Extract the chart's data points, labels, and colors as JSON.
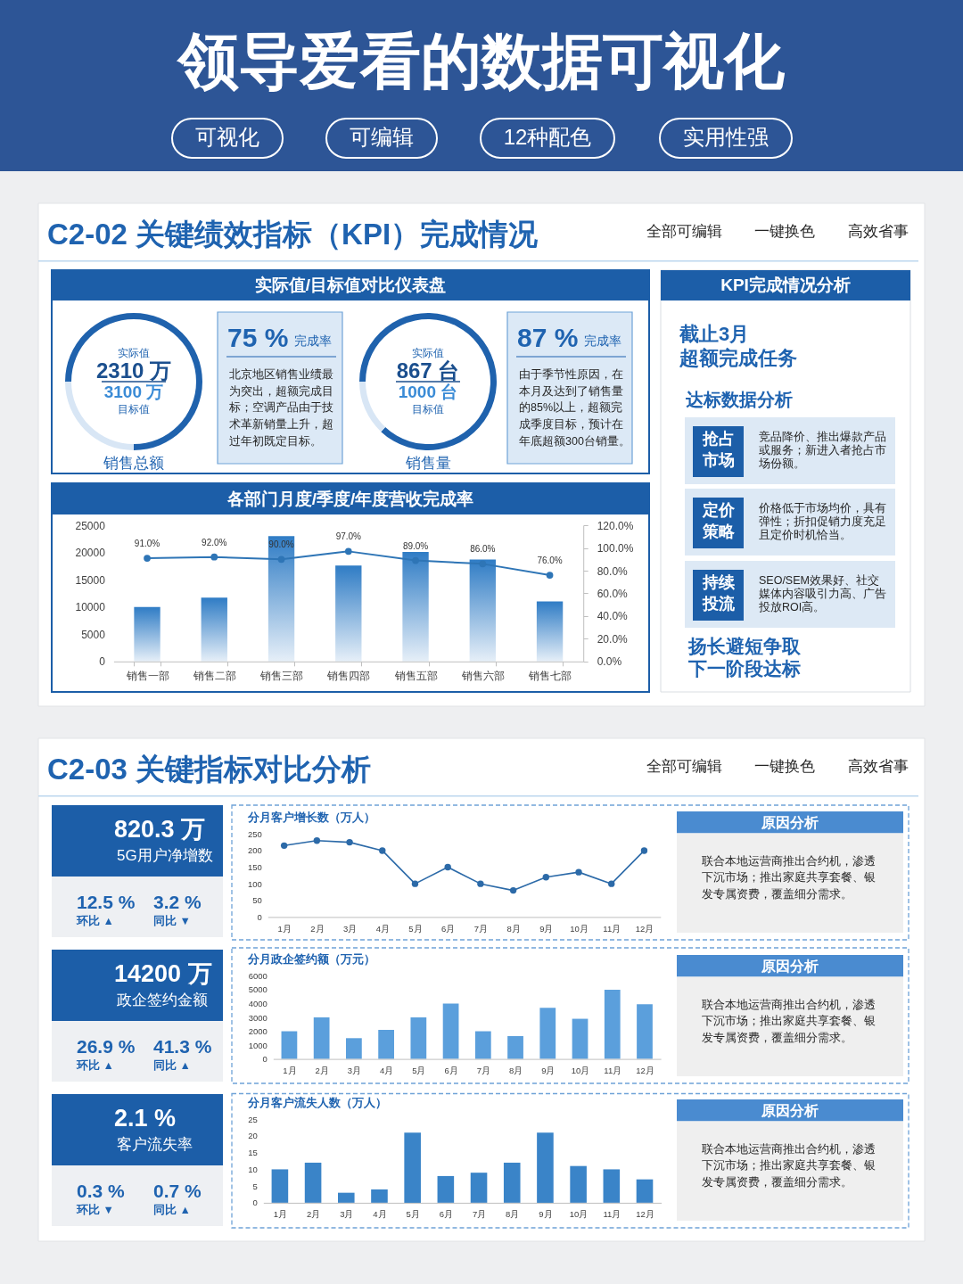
{
  "chart_data": [
    {
      "type": "other",
      "title": "领导爱看的数据可视化",
      "annotations": [
        "可视化",
        "可编辑",
        "12种配色",
        "实用性强"
      ]
    },
    {
      "type": "other",
      "title": "C2-02 关键绩效指标（KPI）完成情况",
      "annotations": [
        "全部可编辑",
        "一键换色",
        "高效省事"
      ]
    },
    {
      "type": "other",
      "title": "实际值/目标值对比仪表盘"
    },
    {
      "type": "donut",
      "title": "销售总额",
      "categories": [
        null,
        null
      ],
      "values": [
        75,
        25
      ],
      "colors": [
        "#1f62ad",
        "#d8e6f5"
      ],
      "annotations": [
        "实际值",
        "2310 万",
        "3100 万",
        "目标值",
        "75 %",
        "完成率",
        "北京地区销售业绩最为突出，超额完成目标；空调产品由于技术革新销量上升，超过年初既定目标。"
      ]
    },
    {
      "type": "donut",
      "title": "销售量",
      "categories": [
        null,
        null
      ],
      "values": [
        87,
        13
      ],
      "colors": [
        "#1f62ad",
        "#d8e6f5"
      ],
      "annotations": [
        "实际值",
        "867 台",
        "1000 台",
        "目标值",
        "87 %",
        "完成率",
        "由于季节性原因，在本月及达到了销售量的85%以上，超额完成季度目标，预计在年底超额300台销量。"
      ]
    },
    {
      "type": "bar",
      "title": "各部门月度/季度/年度营收完成率",
      "categories": [
        "销售一部",
        "销售二部",
        "销售三部",
        "销售四部",
        "销售五部",
        "销售六部",
        "销售七部"
      ],
      "series": [
        {
          "type": "bar",
          "color": "#2f7cc5",
          "values": [
            10000,
            11700,
            23000,
            17600,
            20100,
            18700,
            11000
          ]
        },
        {
          "type": "line",
          "axis": "y2",
          "color": "#2e75b6",
          "values": [
            91,
            92,
            90,
            97,
            89,
            86,
            76
          ],
          "value_labels": [
            "91.0%",
            "92.0%",
            "90.0%",
            "97.0%",
            "89.0%",
            "86.0%",
            "76.0%"
          ]
        }
      ],
      "marker": "circle",
      "ylim": [
        0,
        25000
      ],
      "yticks": [
        0,
        5000,
        10000,
        15000,
        20000,
        25000
      ],
      "y2lim": [
        0,
        120
      ],
      "y2ticks": [
        {
          "value": 0,
          "label": "0.0%"
        },
        {
          "value": 20,
          "label": "20.0%"
        },
        {
          "value": 40,
          "label": "40.0%"
        },
        {
          "value": 60,
          "label": "60.0%"
        },
        {
          "value": 80,
          "label": "80.0%"
        },
        {
          "value": 100,
          "label": "100.0%"
        },
        {
          "value": 120,
          "label": "120.0%"
        }
      ]
    },
    {
      "type": "other",
      "title": "KPI完成情况分析",
      "annotations": [
        "截止3月",
        "超额完成任务",
        "达标数据分析",
        "抢占市场",
        "竞品降价、推出爆款产品或服务；新进入者抢占市场份额。",
        "定价策略",
        "价格低于市场均价，具有弹性；折扣促销力度充足且定价时机恰当。",
        "持续投流",
        "SEO/SEM效果好、社交媒体内容吸引力高、广告投放ROI高。",
        "扬长避短争取",
        "下一阶段达标"
      ]
    },
    {
      "type": "other",
      "title": "C2-03 关键指标对比分析",
      "annotations": [
        "全部可编辑",
        "一键换色",
        "高效省事"
      ]
    },
    {
      "type": "other",
      "annotations": [
        "820.3 万",
        "5G用户净增数",
        "12.5 %",
        "环比 ▲",
        "3.2 %",
        "同比 ▼"
      ]
    },
    {
      "type": "line",
      "title": "分月客户增长数（万人）",
      "categories": [
        "1月",
        "2月",
        "3月",
        "4月",
        "5月",
        "6月",
        "7月",
        "8月",
        "9月",
        "10月",
        "11月",
        "12月"
      ],
      "values": [
        215,
        230,
        225,
        200,
        100,
        150,
        100,
        80,
        120,
        135,
        100,
        200
      ],
      "color": "#2c6aa8",
      "marker": "circle",
      "ylim": [
        0,
        250
      ],
      "yticks": [
        0,
        50,
        100,
        150,
        200,
        250
      ]
    },
    {
      "type": "other",
      "title": "原因分析",
      "annotations": [
        "联合本地运营商推出合约机，渗透下沉市场；推出家庭共享套餐、银发专属资费，覆盖细分需求。"
      ]
    },
    {
      "type": "other",
      "annotations": [
        "14200 万",
        "政企签约金额",
        "26.9 %",
        "环比 ▲",
        "41.3 %",
        "同比 ▲"
      ]
    },
    {
      "type": "bar",
      "title": "分月政企签约额（万元）",
      "categories": [
        "1月",
        "2月",
        "3月",
        "4月",
        "5月",
        "6月",
        "7月",
        "8月",
        "9月",
        "10月",
        "11月",
        "12月"
      ],
      "values": [
        2000,
        3000,
        1500,
        2100,
        3000,
        4000,
        2000,
        1650,
        3700,
        2900,
        5000,
        3950
      ],
      "color": "#5b9fdc",
      "ylim": [
        0,
        6000
      ],
      "yticks": [
        0,
        1000,
        2000,
        3000,
        4000,
        5000,
        6000
      ]
    },
    {
      "type": "other",
      "title": "原因分析",
      "annotations": [
        "联合本地运营商推出合约机，渗透下沉市场；推出家庭共享套餐、银发专属资费，覆盖细分需求。"
      ]
    },
    {
      "type": "other",
      "annotations": [
        "2.1 %",
        "客户流失率",
        "0.3 %",
        "环比 ▼",
        "0.7 %",
        "同比 ▲"
      ]
    },
    {
      "type": "bar",
      "title": "分月客户流失人数（万人）",
      "categories": [
        "1月",
        "2月",
        "3月",
        "4月",
        "5月",
        "6月",
        "7月",
        "8月",
        "9月",
        "10月",
        "11月",
        "12月"
      ],
      "values": [
        10,
        12,
        3,
        4,
        21,
        8,
        9,
        12,
        21,
        11,
        10,
        7
      ],
      "color": "#3a84c8",
      "ylim": [
        0,
        25
      ],
      "yticks": [
        0,
        5,
        10,
        15,
        20,
        25
      ]
    },
    {
      "type": "other",
      "title": "原因分析",
      "annotations": [
        "联合本地运营商推出合约机，渗透下沉市场；推出家庭共享套餐、银发专属资费，覆盖细分需求。"
      ]
    }
  ]
}
